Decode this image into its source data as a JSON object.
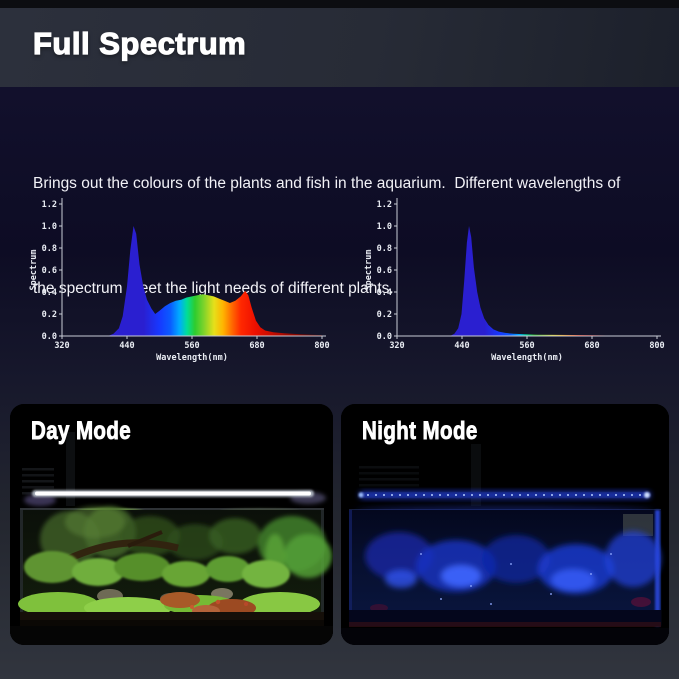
{
  "header": {
    "title": "Full Spectrum"
  },
  "description": {
    "lines": [
      "Brings out the colours of the plants and fish in the aquarium.  Different wavelengths of",
      "the spectrum meet the light needs of different plants."
    ]
  },
  "chart_style": {
    "axis_color": "#c9cdd6",
    "text_color": "#e9ecf3"
  },
  "spectrum_gradient": [
    [
      400,
      "#2a1fd0"
    ],
    [
      435,
      "#1738ff"
    ],
    [
      460,
      "#0a5cff"
    ],
    [
      480,
      "#00aaff"
    ],
    [
      497,
      "#00dd99"
    ],
    [
      515,
      "#2ecc2e"
    ],
    [
      535,
      "#7ed32b"
    ],
    [
      558,
      "#e6e01a"
    ],
    [
      578,
      "#ffb400"
    ],
    [
      598,
      "#ff6a00"
    ],
    [
      618,
      "#ff2800"
    ],
    [
      650,
      "#ee1000"
    ],
    [
      690,
      "#c40c00"
    ],
    [
      740,
      "#8a0800"
    ],
    [
      800,
      "#5a0500"
    ]
  ],
  "chart_data": [
    {
      "type": "area",
      "title": "",
      "xlabel": "Wavelength(nm)",
      "ylabel": "Spectrum",
      "xlim": [
        320,
        800
      ],
      "ylim": [
        0,
        1.2
      ],
      "xticks": [
        320,
        440,
        560,
        680,
        800
      ],
      "yticks": [
        0,
        0.2,
        0.4,
        0.6,
        0.8,
        1,
        1.2
      ],
      "points": [
        [
          405,
          0
        ],
        [
          415,
          0.02
        ],
        [
          425,
          0.07
        ],
        [
          432,
          0.18
        ],
        [
          440,
          0.45
        ],
        [
          446,
          0.78
        ],
        [
          452,
          1.0
        ],
        [
          457,
          0.93
        ],
        [
          463,
          0.65
        ],
        [
          470,
          0.45
        ],
        [
          477,
          0.33
        ],
        [
          485,
          0.25
        ],
        [
          492,
          0.2
        ],
        [
          500,
          0.23
        ],
        [
          510,
          0.27
        ],
        [
          520,
          0.3
        ],
        [
          530,
          0.32
        ],
        [
          540,
          0.33
        ],
        [
          550,
          0.35
        ],
        [
          560,
          0.36
        ],
        [
          570,
          0.37
        ],
        [
          580,
          0.38
        ],
        [
          590,
          0.37
        ],
        [
          600,
          0.36
        ],
        [
          610,
          0.34
        ],
        [
          620,
          0.32
        ],
        [
          630,
          0.3
        ],
        [
          640,
          0.32
        ],
        [
          650,
          0.36
        ],
        [
          658,
          0.41
        ],
        [
          664,
          0.37
        ],
        [
          670,
          0.26
        ],
        [
          678,
          0.14
        ],
        [
          686,
          0.08
        ],
        [
          695,
          0.05
        ],
        [
          710,
          0.035
        ],
        [
          730,
          0.025
        ],
        [
          760,
          0.015
        ],
        [
          800,
          0.008
        ]
      ]
    },
    {
      "type": "area",
      "title": "",
      "xlabel": "Wavelength(nm)",
      "ylabel": "Spectrum",
      "xlim": [
        320,
        800
      ],
      "ylim": [
        0,
        1.2
      ],
      "xticks": [
        320,
        440,
        560,
        680,
        800
      ],
      "yticks": [
        0,
        0.2,
        0.4,
        0.6,
        0.8,
        1,
        1.2
      ],
      "points": [
        [
          418,
          0
        ],
        [
          426,
          0.02
        ],
        [
          433,
          0.07
        ],
        [
          439,
          0.2
        ],
        [
          444,
          0.5
        ],
        [
          449,
          0.85
        ],
        [
          453,
          1.0
        ],
        [
          457,
          0.9
        ],
        [
          462,
          0.62
        ],
        [
          468,
          0.4
        ],
        [
          474,
          0.26
        ],
        [
          481,
          0.16
        ],
        [
          489,
          0.1
        ],
        [
          498,
          0.06
        ],
        [
          508,
          0.04
        ],
        [
          520,
          0.028
        ],
        [
          535,
          0.02
        ],
        [
          555,
          0.015
        ],
        [
          580,
          0.012
        ],
        [
          610,
          0.01
        ],
        [
          645,
          0.009
        ],
        [
          680,
          0.007
        ],
        [
          720,
          0.004
        ],
        [
          800,
          0.002
        ]
      ]
    }
  ],
  "photos": {
    "items": [
      {
        "label": "Day Mode",
        "mode": "day"
      },
      {
        "label": "Night Mode",
        "mode": "night"
      }
    ]
  },
  "colors": {
    "header_bg": "#272b36",
    "body_navy": "#0d0c24",
    "bottom_slate": "#31353e",
    "day_led": "#ffffff",
    "night_led": "#3f66ff"
  }
}
